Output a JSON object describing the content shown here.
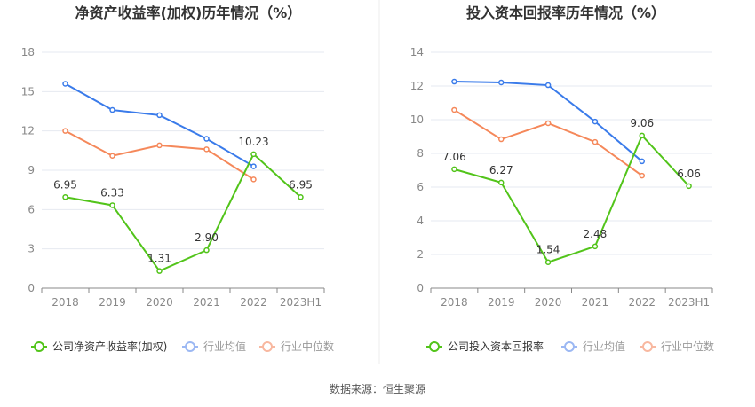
{
  "source": "数据来源：恒生聚源",
  "colors": {
    "company": "#52c41a",
    "avg": "#3a7bea",
    "median": "#f5885a",
    "avg_legend": "#9cb8f3",
    "median_legend": "#f8b8a0"
  },
  "chart_data": [
    {
      "type": "line",
      "title": "净资产收益率(加权)历年情况（%）",
      "categories": [
        "2018",
        "2019",
        "2020",
        "2021",
        "2022",
        "2023H1"
      ],
      "ylim": [
        0,
        18
      ],
      "yticks": [
        0,
        3,
        6,
        9,
        12,
        15,
        18
      ],
      "series": [
        {
          "name": "公司净资产收益率(加权)",
          "values": [
            6.95,
            6.33,
            1.31,
            2.9,
            10.23,
            6.95
          ],
          "labels": [
            "6.95",
            "6.33",
            "1.31",
            "2.90",
            "10.23",
            "6.95"
          ]
        },
        {
          "name": "行业均值",
          "values": [
            15.6,
            13.6,
            13.2,
            11.4,
            9.3,
            null
          ]
        },
        {
          "name": "行业中位数",
          "values": [
            12.0,
            10.1,
            10.9,
            10.6,
            8.3,
            null
          ]
        }
      ]
    },
    {
      "type": "line",
      "title": "投入资本回报率历年情况（%）",
      "categories": [
        "2018",
        "2019",
        "2020",
        "2021",
        "2022",
        "2023H1"
      ],
      "ylim": [
        0,
        14
      ],
      "yticks": [
        0,
        2,
        4,
        6,
        8,
        10,
        12,
        14
      ],
      "series": [
        {
          "name": "公司投入资本回报率",
          "values": [
            7.06,
            6.27,
            1.54,
            2.48,
            9.06,
            6.06
          ],
          "labels": [
            "7.06",
            "6.27",
            "1.54",
            "2.48",
            "9.06",
            "6.06"
          ]
        },
        {
          "name": "行业均值",
          "values": [
            12.26,
            12.21,
            12.05,
            9.89,
            7.53,
            null
          ]
        },
        {
          "name": "行业中位数",
          "values": [
            10.58,
            8.84,
            9.79,
            8.68,
            6.68,
            null
          ]
        }
      ]
    }
  ]
}
